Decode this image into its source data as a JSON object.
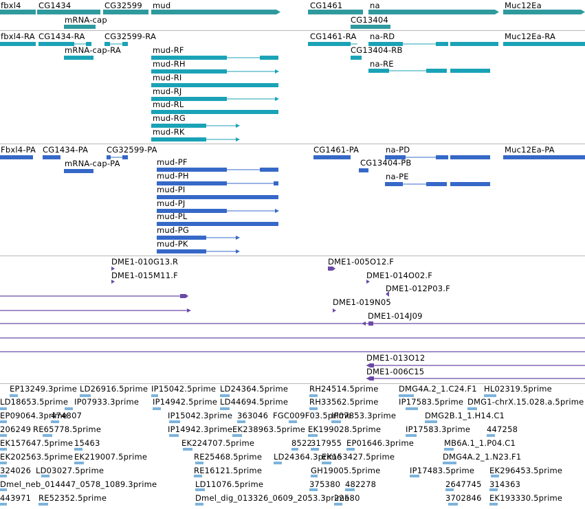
{
  "colors": {
    "gene": "#2e9a9e",
    "transcript": "#1aa2b6",
    "protein": "#3668c8",
    "clone": "#6a4aa8",
    "est": "#7cb3dc",
    "separator": "#b8b8b8"
  },
  "genes": [
    {
      "label": "fbxl4"
    },
    {
      "label": "CG1434"
    },
    {
      "label": "CG32599"
    },
    {
      "label": "mud"
    },
    {
      "label": "mRNA-cap"
    },
    {
      "label": "CG1461"
    },
    {
      "label": "na"
    },
    {
      "label": "CG13404"
    },
    {
      "label": "Muc12Ea"
    }
  ],
  "transcripts": [
    {
      "label": "fbxl4-RA"
    },
    {
      "label": "CG1434-RA"
    },
    {
      "label": "CG32599-RA"
    },
    {
      "label": "mRNA-cap-RA"
    },
    {
      "label": "mud-RF"
    },
    {
      "label": "mud-RH"
    },
    {
      "label": "mud-RI"
    },
    {
      "label": "mud-RJ"
    },
    {
      "label": "mud-RL"
    },
    {
      "label": "mud-RG"
    },
    {
      "label": "mud-RK"
    },
    {
      "label": "CG1461-RA"
    },
    {
      "label": "na-RD"
    },
    {
      "label": "CG13404-RB"
    },
    {
      "label": "na-RE"
    },
    {
      "label": "Muc12Ea-RA"
    }
  ],
  "proteins": [
    {
      "label": "Fbxl4-PA"
    },
    {
      "label": "CG1434-PA"
    },
    {
      "label": "CG32599-PA"
    },
    {
      "label": "mRNA-cap-PA"
    },
    {
      "label": "mud-PF"
    },
    {
      "label": "mud-PH"
    },
    {
      "label": "mud-PI"
    },
    {
      "label": "mud-PJ"
    },
    {
      "label": "mud-PL"
    },
    {
      "label": "mud-PG"
    },
    {
      "label": "mud-PK"
    },
    {
      "label": "CG1461-PA"
    },
    {
      "label": "na-PD"
    },
    {
      "label": "CG13404-PB"
    },
    {
      "label": "na-PE"
    },
    {
      "label": "Muc12Ea-PA"
    }
  ],
  "clones": [
    {
      "label": "DME1-010G13.R"
    },
    {
      "label": "DME1-015M11.F"
    },
    {
      "label": "DME1-005O12.F"
    },
    {
      "label": "DME1-014O02.F"
    },
    {
      "label": "DME1-012P03.F"
    },
    {
      "label": "DME1-019N05"
    },
    {
      "label": "DME1-014J09"
    },
    {
      "label": "DME1-013O12"
    },
    {
      "label": "DME1-006C15"
    }
  ],
  "ests": [
    {
      "label": "EP13249.3prime"
    },
    {
      "label": "LD26916.5prime"
    },
    {
      "label": "IP15042.5prime"
    },
    {
      "label": "LD24364.5prime"
    },
    {
      "label": "RH24514.5prime"
    },
    {
      "label": "DMG4A.2_1.C24.F1"
    },
    {
      "label": "HL02319.5prime"
    },
    {
      "label": "LD18653.5prime"
    },
    {
      "label": "IP07933.3prime"
    },
    {
      "label": "IP14942.5prime"
    },
    {
      "label": "LD44694.5prime"
    },
    {
      "label": "RH33562.5prime"
    },
    {
      "label": "IP17583.5prime"
    },
    {
      "label": "DMG1-chrX.15.028.a.5prime"
    },
    {
      "label": "EP09064.3prime"
    },
    {
      "label": "474807"
    },
    {
      "label": "IP15042.3prime"
    },
    {
      "label": "363046"
    },
    {
      "label": "FGC009F03.5prime"
    },
    {
      "label": "IP07853.3prime"
    },
    {
      "label": "DMG2B.1_1.H14.C1"
    },
    {
      "label": "206249"
    },
    {
      "label": "RE65778.5prime"
    },
    {
      "label": "IP14942.3prime"
    },
    {
      "label": "EK238963.5prime"
    },
    {
      "label": "EK199028.5prime"
    },
    {
      "label": "IP17583.3prime"
    },
    {
      "label": "447258"
    },
    {
      "label": "EK157647.5prime"
    },
    {
      "label": "15463"
    },
    {
      "label": "EK224707.5prime"
    },
    {
      "label": "8522"
    },
    {
      "label": "317955"
    },
    {
      "label": "EP01646.3prime"
    },
    {
      "label": "MB6A.1_1.P04.C1"
    },
    {
      "label": "EK202563.5prime"
    },
    {
      "label": "EK219007.5prime"
    },
    {
      "label": "RE25468.5prime"
    },
    {
      "label": "LD24364.3prime"
    },
    {
      "label": "EK153427.5prime"
    },
    {
      "label": "DMG4A.2_1.N23.F1"
    },
    {
      "label": "324026"
    },
    {
      "label": "LD03027.5prime"
    },
    {
      "label": "RE16121.5prime"
    },
    {
      "label": "GH19005.5prime"
    },
    {
      "label": "IP17483.5prime"
    },
    {
      "label": "EK296453.5prime"
    },
    {
      "label": "Dmel_neb_014447_0578_1089.3prime"
    },
    {
      "label": "LD11076.5prime"
    },
    {
      "label": "375380"
    },
    {
      "label": "482278"
    },
    {
      "label": "2647745"
    },
    {
      "label": "314363"
    },
    {
      "label": "443971"
    },
    {
      "label": "RE52352.5prime"
    },
    {
      "label": "Dmel_dig_013326_0609_2053.3prime"
    },
    {
      "label": "22580"
    },
    {
      "label": "3702846"
    },
    {
      "label": "EK193330.5prime"
    }
  ]
}
